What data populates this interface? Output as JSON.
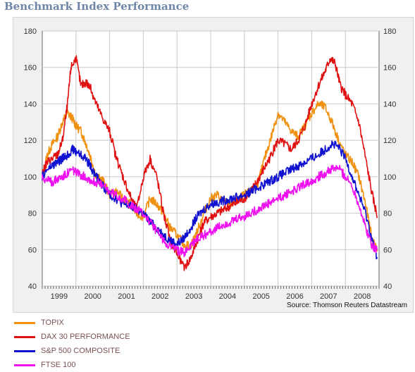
{
  "header": {
    "title": "Benchmark Index Performance"
  },
  "chart_data": {
    "type": "line",
    "title": "Benchmark Index Performance",
    "xlabel": "",
    "ylabel": "",
    "ylim": [
      40,
      180
    ],
    "yticks": [
      40,
      60,
      80,
      100,
      120,
      140,
      160,
      180
    ],
    "x_categories": [
      "1999",
      "2000",
      "2001",
      "2002",
      "2003",
      "2004",
      "2005",
      "2006",
      "2007",
      "2008"
    ],
    "x_range": [
      1999.0,
      2009.0
    ],
    "grid": true,
    "legend_position": "bottom",
    "source": "Source: Thomson Reuters Datastream",
    "series": [
      {
        "name": "TOPIX",
        "color": "#f0900f",
        "x": [
          1999.0,
          1999.15,
          1999.3,
          1999.45,
          1999.6,
          1999.75,
          1999.9,
          2000.0,
          2000.15,
          2000.3,
          2000.45,
          2000.6,
          2000.8,
          2001.0,
          2001.2,
          2001.4,
          2001.6,
          2001.8,
          2002.0,
          2002.2,
          2002.4,
          2002.6,
          2002.8,
          2003.0,
          2003.2,
          2003.4,
          2003.6,
          2003.8,
          2004.0,
          2004.2,
          2004.4,
          2004.6,
          2004.8,
          2005.0,
          2005.2,
          2005.4,
          2005.6,
          2005.8,
          2006.0,
          2006.2,
          2006.4,
          2006.6,
          2006.8,
          2007.0,
          2007.2,
          2007.4,
          2007.6,
          2007.8,
          2008.0,
          2008.2,
          2008.4,
          2008.6,
          2008.8,
          2008.95
        ],
        "y": [
          100,
          112,
          118,
          122,
          130,
          135,
          132,
          128,
          125,
          118,
          110,
          100,
          98,
          90,
          92,
          88,
          85,
          80,
          78,
          88,
          85,
          80,
          72,
          68,
          63,
          62,
          70,
          80,
          88,
          90,
          86,
          85,
          87,
          90,
          92,
          96,
          110,
          122,
          135,
          130,
          125,
          122,
          128,
          135,
          140,
          138,
          130,
          120,
          112,
          108,
          100,
          85,
          65,
          60
        ]
      },
      {
        "name": "DAX 30 PERFORMANCE",
        "color": "#e01010",
        "x": [
          1999.0,
          1999.15,
          1999.3,
          1999.45,
          1999.6,
          1999.75,
          1999.85,
          2000.0,
          2000.15,
          2000.3,
          2000.45,
          2000.6,
          2000.8,
          2001.0,
          2001.2,
          2001.4,
          2001.6,
          2001.8,
          2002.0,
          2002.2,
          2002.4,
          2002.6,
          2002.8,
          2003.0,
          2003.2,
          2003.4,
          2003.6,
          2003.8,
          2004.0,
          2004.2,
          2004.4,
          2004.6,
          2004.8,
          2005.0,
          2005.2,
          2005.4,
          2005.6,
          2005.8,
          2006.0,
          2006.2,
          2006.4,
          2006.6,
          2006.8,
          2007.0,
          2007.2,
          2007.4,
          2007.55,
          2007.7,
          2007.85,
          2008.0,
          2008.2,
          2008.4,
          2008.6,
          2008.8,
          2008.95
        ],
        "y": [
          102,
          108,
          110,
          112,
          120,
          140,
          160,
          165,
          150,
          152,
          148,
          140,
          132,
          125,
          110,
          100,
          90,
          82,
          100,
          110,
          100,
          80,
          65,
          58,
          50,
          55,
          65,
          75,
          78,
          80,
          82,
          84,
          86,
          88,
          92,
          98,
          105,
          112,
          120,
          118,
          115,
          120,
          128,
          140,
          150,
          158,
          165,
          162,
          150,
          145,
          140,
          130,
          110,
          90,
          78
        ]
      },
      {
        "name": "S&P 500 COMPOSITE",
        "color": "#1010d0",
        "x": [
          1999.0,
          1999.15,
          1999.3,
          1999.45,
          1999.6,
          1999.75,
          1999.9,
          2000.0,
          2000.15,
          2000.3,
          2000.45,
          2000.6,
          2000.8,
          2001.0,
          2001.2,
          2001.4,
          2001.6,
          2001.8,
          2002.0,
          2002.2,
          2002.4,
          2002.6,
          2002.8,
          2003.0,
          2003.2,
          2003.4,
          2003.6,
          2003.8,
          2004.0,
          2004.2,
          2004.4,
          2004.6,
          2004.8,
          2005.0,
          2005.2,
          2005.4,
          2005.6,
          2005.8,
          2006.0,
          2006.2,
          2006.4,
          2006.6,
          2006.8,
          2007.0,
          2007.2,
          2007.4,
          2007.6,
          2007.8,
          2008.0,
          2008.2,
          2008.4,
          2008.6,
          2008.8,
          2008.95
        ],
        "y": [
          100,
          104,
          106,
          108,
          110,
          112,
          115,
          114,
          112,
          110,
          105,
          100,
          95,
          90,
          88,
          85,
          84,
          82,
          80,
          75,
          72,
          68,
          65,
          63,
          66,
          72,
          78,
          82,
          85,
          86,
          87,
          88,
          89,
          90,
          92,
          94,
          96,
          98,
          100,
          102,
          104,
          106,
          108,
          110,
          112,
          115,
          118,
          116,
          110,
          100,
          90,
          80,
          65,
          55
        ]
      },
      {
        "name": "FTSE 100",
        "color": "#ee10ee",
        "x": [
          1999.0,
          1999.15,
          1999.3,
          1999.45,
          1999.6,
          1999.75,
          1999.9,
          2000.0,
          2000.15,
          2000.3,
          2000.45,
          2000.6,
          2000.8,
          2001.0,
          2001.2,
          2001.4,
          2001.6,
          2001.8,
          2002.0,
          2002.2,
          2002.4,
          2002.6,
          2002.8,
          2003.0,
          2003.2,
          2003.4,
          2003.6,
          2003.8,
          2004.0,
          2004.2,
          2004.4,
          2004.6,
          2004.8,
          2005.0,
          2005.2,
          2005.4,
          2005.6,
          2005.8,
          2006.0,
          2006.2,
          2006.4,
          2006.6,
          2006.8,
          2007.0,
          2007.2,
          2007.4,
          2007.6,
          2007.8,
          2008.0,
          2008.2,
          2008.4,
          2008.6,
          2008.8,
          2008.95
        ],
        "y": [
          100,
          98,
          97,
          99,
          100,
          102,
          104,
          102,
          101,
          100,
          98,
          97,
          95,
          92,
          90,
          88,
          85,
          82,
          80,
          75,
          70,
          65,
          62,
          60,
          58,
          62,
          66,
          68,
          70,
          72,
          74,
          75,
          77,
          78,
          80,
          82,
          84,
          86,
          88,
          90,
          92,
          94,
          96,
          98,
          100,
          102,
          104,
          105,
          100,
          95,
          85,
          72,
          62,
          60
        ]
      }
    ]
  }
}
